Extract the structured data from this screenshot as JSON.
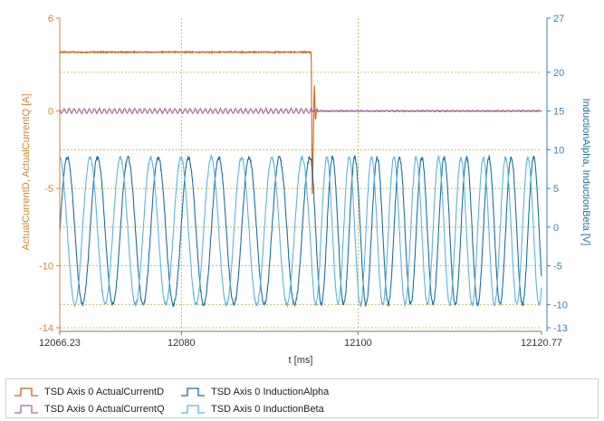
{
  "chart_data": {
    "type": "line",
    "xlabel": "t [ms]",
    "ylabel_left": "ActualCurrentD, ActualCurrentQ [A]",
    "ylabel_right": "InductionAlpha, InductionBeta [V]",
    "xlim": [
      12066.23,
      12120.77
    ],
    "ylim_left": [
      -14,
      6
    ],
    "ylim_right": [
      -13,
      27
    ],
    "x_ticks": [
      "12066.23",
      "12080",
      "12100",
      "12120.77"
    ],
    "x_tick_values": [
      12066.23,
      12080,
      12100,
      12120.77
    ],
    "y_left_ticks": [
      "6",
      "0",
      "-5",
      "-10",
      "-14"
    ],
    "y_left_tick_values": [
      6,
      0,
      -5,
      -10,
      -14
    ],
    "y_right_ticks": [
      "27",
      "20",
      "15",
      "10",
      "5",
      "0",
      "-5",
      "-10",
      "-13"
    ],
    "y_right_tick_values": [
      27,
      20,
      15,
      10,
      5,
      0,
      -5,
      -10,
      -13
    ],
    "grid": true,
    "legend_position": "bottom",
    "series": [
      {
        "name": "TSD Axis 0 ActualCurrentD",
        "axis": "left",
        "color": "#c8641e",
        "shape": "step_level",
        "before": 3.8,
        "after": 0.0,
        "switch_x": 12094.7,
        "spike_min": -5.5
      },
      {
        "name": "TSD Axis 0 ActualCurrentQ",
        "axis": "left",
        "color": "#a866a8",
        "shape": "ripple",
        "level": 0.0,
        "amplitude": 0.15,
        "switch_x": 12094.7
      },
      {
        "name": "TSD Axis 0 InductionAlpha",
        "axis": "right",
        "color": "#1a6fa6",
        "shape": "sine",
        "offset": -0.5,
        "amplitude": 9.5,
        "period_before": 3.43,
        "period_after": 2.53,
        "phase": 0.0,
        "switch_x": 12094.7
      },
      {
        "name": "TSD Axis 0 InductionBeta",
        "axis": "right",
        "color": "#5ab4e0",
        "shape": "sine",
        "offset": -0.5,
        "amplitude": 9.5,
        "period_before": 3.43,
        "period_after": 2.53,
        "phase": 1.5708,
        "switch_x": 12094.7
      }
    ]
  }
}
